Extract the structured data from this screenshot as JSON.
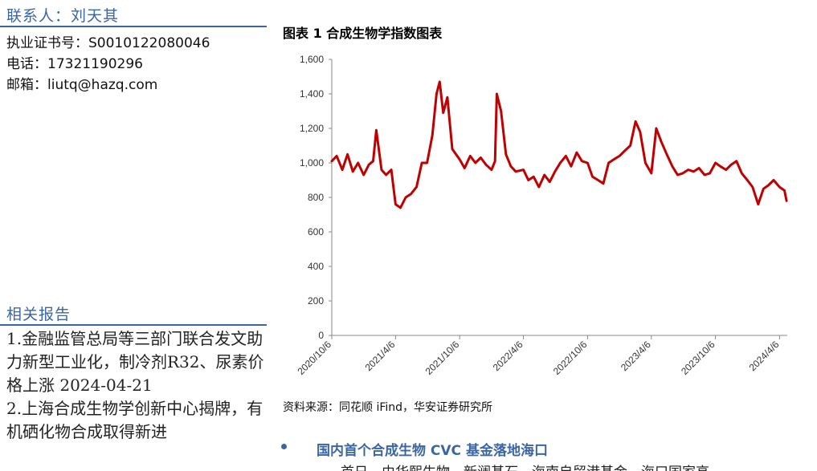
{
  "contact": {
    "title": "联系人：刘天其",
    "license": "执业证书号：S0010122080046",
    "phone": "电话：17321190296",
    "email": "邮箱：liutq@hazq.com"
  },
  "related": {
    "title": "相关报告",
    "items": [
      "1.金融监管总局等三部门联合发文助力新型工业化，制冷剂R32、尿素价格上涨 2024-04-21",
      "2.上海合成生物学创新中心揭牌，有机硒化物合成取得新进"
    ]
  },
  "figure": {
    "title": "图表 1 合成生物学指数图表",
    "source": "资料来源：同花顺 iFind，华安证券研究所"
  },
  "chart_data": {
    "type": "line",
    "title": "",
    "xlabel": "",
    "ylabel": "",
    "ylim": [
      0,
      1600
    ],
    "yticks": [
      "0",
      "200",
      "400",
      "600",
      "800",
      "1,000",
      "1,200",
      "1,400",
      "1,600"
    ],
    "xticks": [
      "2020/10/6",
      "2021/4/6",
      "2021/10/6",
      "2022/4/6",
      "2022/10/6",
      "2023/4/6",
      "2023/10/6",
      "2024/4/6"
    ],
    "grid": false,
    "legend": "none",
    "line_color": "#c00000",
    "series": [
      {
        "x": [
          "2020-10-06",
          "2020-10-20",
          "2020-11-05",
          "2020-11-20",
          "2020-12-05",
          "2020-12-20",
          "2021-01-05",
          "2021-01-20",
          "2021-02-01",
          "2021-02-10",
          "2021-02-25",
          "2021-03-10",
          "2021-03-25",
          "2021-04-06",
          "2021-04-20",
          "2021-05-05",
          "2021-05-20",
          "2021-06-05",
          "2021-06-20",
          "2021-07-05",
          "2021-07-20",
          "2021-08-01",
          "2021-08-10",
          "2021-08-20",
          "2021-09-01",
          "2021-09-15",
          "2021-10-06",
          "2021-10-20",
          "2021-11-05",
          "2021-11-20",
          "2021-12-05",
          "2021-12-20",
          "2022-01-05",
          "2022-01-15",
          "2022-01-20",
          "2022-02-01",
          "2022-02-15",
          "2022-03-01",
          "2022-03-15",
          "2022-04-06",
          "2022-04-20",
          "2022-05-05",
          "2022-05-20",
          "2022-06-05",
          "2022-06-20",
          "2022-07-05",
          "2022-07-20",
          "2022-08-05",
          "2022-08-20",
          "2022-09-05",
          "2022-09-20",
          "2022-10-06",
          "2022-10-20",
          "2022-11-05",
          "2022-11-20",
          "2022-12-05",
          "2022-12-20",
          "2023-01-05",
          "2023-01-20",
          "2023-02-05",
          "2023-02-20",
          "2023-03-05",
          "2023-03-20",
          "2023-04-06",
          "2023-04-20",
          "2023-05-05",
          "2023-05-20",
          "2023-06-05",
          "2023-06-20",
          "2023-07-05",
          "2023-07-20",
          "2023-08-05",
          "2023-08-20",
          "2023-09-05",
          "2023-09-20",
          "2023-10-06",
          "2023-10-20",
          "2023-11-05",
          "2023-11-20",
          "2023-12-05",
          "2023-12-20",
          "2024-01-05",
          "2024-01-20",
          "2024-02-05",
          "2024-02-20",
          "2024-03-05",
          "2024-03-20",
          "2024-04-06",
          "2024-04-20",
          "2024-04-26"
        ],
        "y": [
          1010,
          1040,
          960,
          1050,
          950,
          1000,
          930,
          990,
          1010,
          1190,
          960,
          930,
          960,
          760,
          740,
          800,
          820,
          860,
          1000,
          1000,
          1160,
          1400,
          1470,
          1290,
          1380,
          1080,
          1020,
          970,
          1040,
          1000,
          1030,
          990,
          960,
          1010,
          1400,
          1300,
          1050,
          980,
          950,
          960,
          900,
          920,
          860,
          930,
          890,
          950,
          1000,
          1040,
          980,
          1060,
          1010,
          1000,
          920,
          900,
          880,
          1000,
          1020,
          1040,
          1070,
          1100,
          1240,
          1180,
          1000,
          940,
          1200,
          1120,
          1050,
          980,
          930,
          940,
          960,
          950,
          970,
          930,
          940,
          1000,
          980,
          960,
          990,
          1010,
          940,
          900,
          860,
          760,
          850,
          870,
          900,
          860,
          840,
          780
        ]
      }
    ]
  },
  "section": {
    "heading": "国内首个合成生物 CVC 基金落地海口",
    "cut_text": "首日，由华熙生物、新澜基石、海南自贸港基金、海口国家高"
  }
}
